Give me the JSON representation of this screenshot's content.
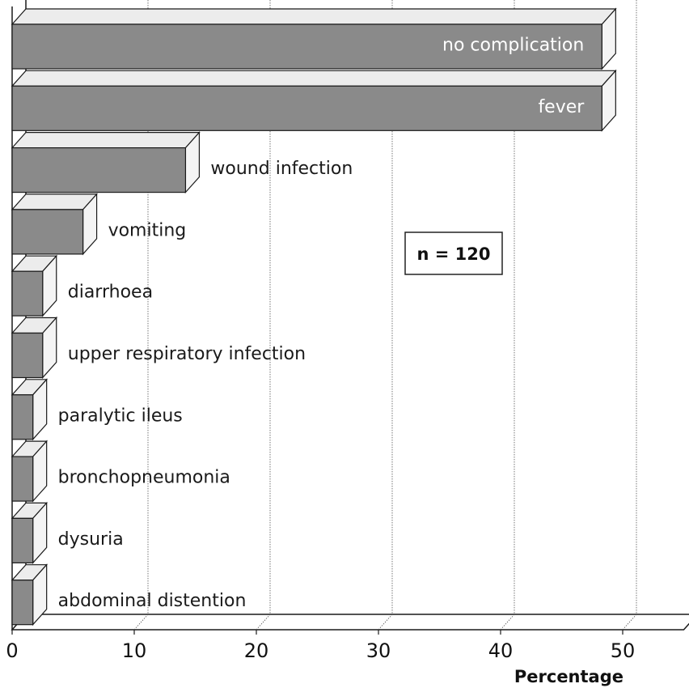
{
  "chart_data": {
    "type": "bar",
    "orientation": "horizontal",
    "style": "3d",
    "categories": [
      "no complication",
      "fever",
      "wound infection",
      "vomiting",
      "diarrhoea",
      "upper respiratory infection",
      "paralytic ileus",
      "bronchopneumonia",
      "dysuria",
      "abdominal distention"
    ],
    "values": [
      48.3,
      48.3,
      14.2,
      5.8,
      2.5,
      2.5,
      1.7,
      1.7,
      1.7,
      1.7
    ],
    "xlabel": "Percentage",
    "ylabel": "",
    "xlim": [
      0,
      55
    ],
    "xticks": [
      "0",
      "10",
      "20",
      "30",
      "40",
      "50"
    ],
    "annotation": "n = 120",
    "grid": "vertical-dotted",
    "colors": {
      "bar_front": "#8a8a8a",
      "bar_top": "#ececec",
      "bar_side": "#f4f4f4",
      "edge": "#1a1a1a",
      "grid": "#555555"
    }
  }
}
